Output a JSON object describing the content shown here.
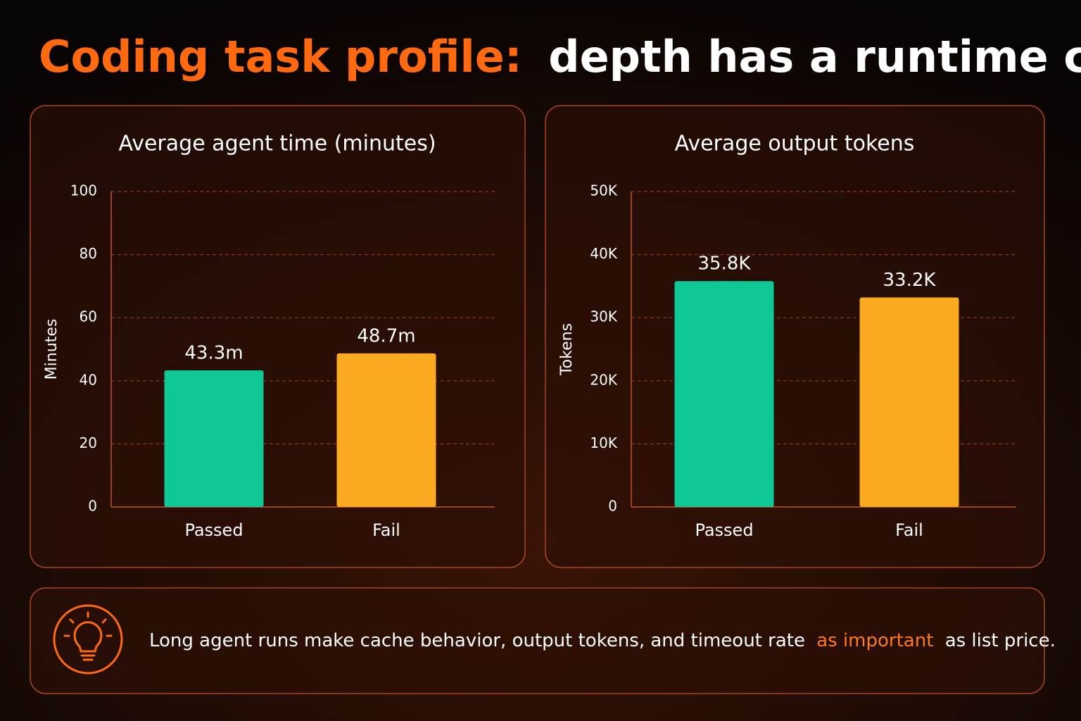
{
  "title": {
    "highlight": "Coding task profile:",
    "rest": "depth has a runtime cost"
  },
  "chart_data": [
    {
      "type": "bar",
      "title": "Average agent time (minutes)",
      "y_label": "Minutes",
      "categories": [
        "Passed",
        "Fail"
      ],
      "values": [
        43.3,
        48.7
      ],
      "value_labels": [
        "43.3m",
        "48.7m"
      ],
      "colors": [
        "#0fc896",
        "#fca922"
      ],
      "ylim": [
        0,
        100
      ],
      "yticks": [
        0,
        20,
        40,
        60,
        80,
        100
      ],
      "grid": true
    },
    {
      "type": "bar",
      "title": "Average output tokens",
      "y_label": "Tokens",
      "categories": [
        "Passed",
        "Fail"
      ],
      "values": [
        35800,
        33200
      ],
      "value_labels": [
        "35.8K",
        "33.2K"
      ],
      "colors": [
        "#0fc896",
        "#fca922"
      ],
      "ylim": [
        0,
        50000
      ],
      "yticks": [
        0,
        {
          "value": 10000,
          "label": "10K"
        },
        {
          "value": 20000,
          "label": "20K"
        },
        {
          "value": 30000,
          "label": "30K"
        },
        {
          "value": 40000,
          "label": "40K"
        },
        {
          "value": 50000,
          "label": "50K"
        }
      ],
      "grid": true
    }
  ],
  "callout": {
    "before": "Long agent runs make cache behavior, output tokens, and timeout rate",
    "highlight": "as important",
    "after": "as list price."
  }
}
